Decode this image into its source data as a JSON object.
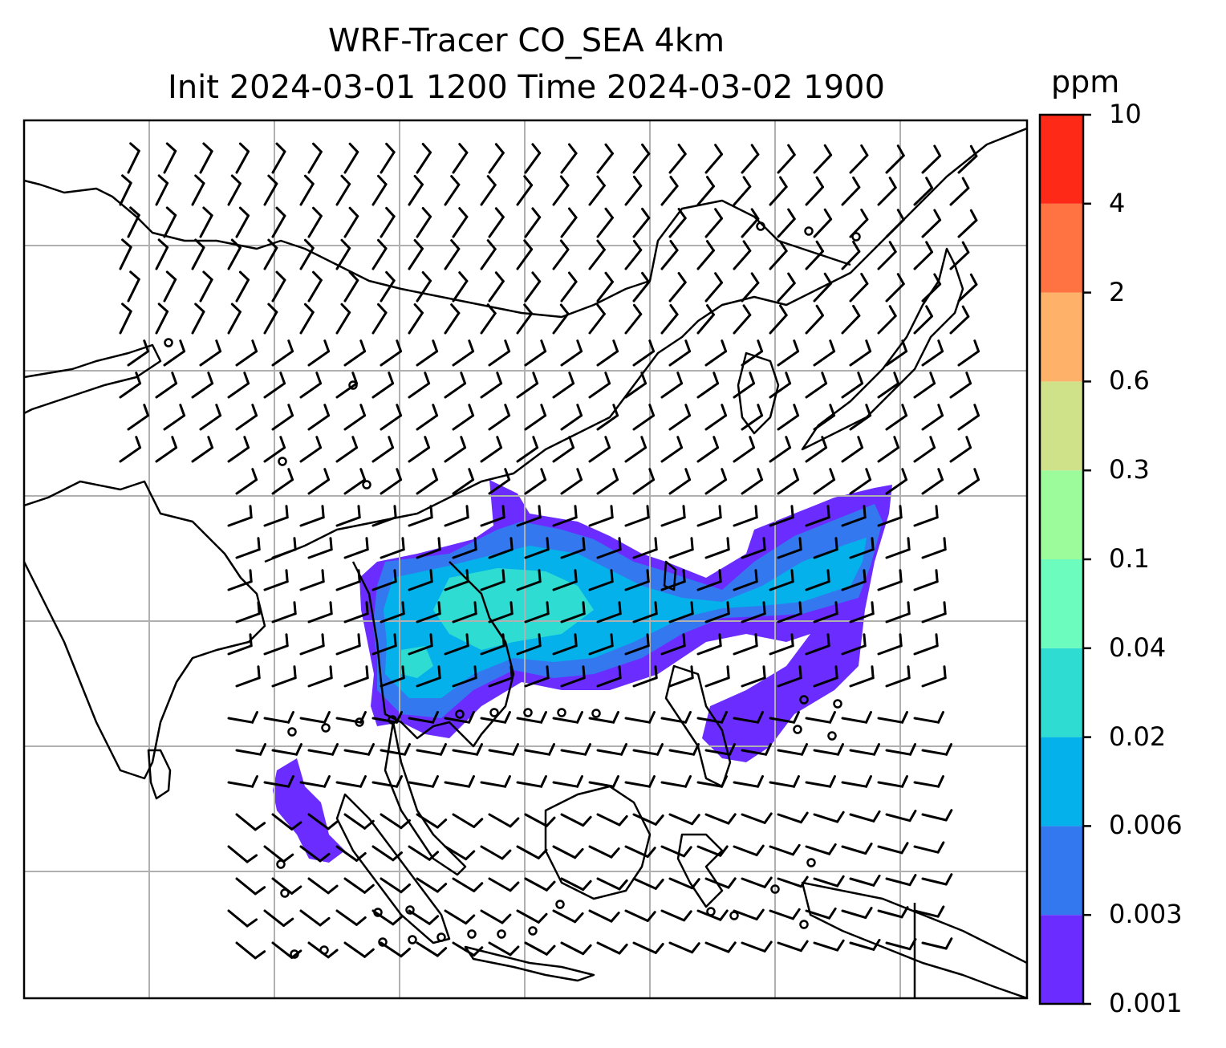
{
  "title": {
    "line1": "WRF-Tracer CO_SEA 4km",
    "line2": "Init 2024-03-01 1200 Time 2024-03-02 1900"
  },
  "colorbar": {
    "unit": "ppm",
    "levels": [
      "0.001",
      "0.003",
      "0.006",
      "0.02",
      "0.04",
      "0.1",
      "0.3",
      "0.6",
      "2",
      "4",
      "10"
    ],
    "colors": [
      "#6a2cff",
      "#3478f0",
      "#04b1ea",
      "#2edcd2",
      "#6cfcbe",
      "#9cfb9b",
      "#cfe28a",
      "#fdb169",
      "#ff7242",
      "#fe2a17"
    ]
  },
  "map": {
    "grid": "on",
    "coastlines": "on",
    "wind_barbs": "on",
    "plume_colors": {
      "outer": "#6a2cff",
      "mid": "#3478f0",
      "inner": "#04b1ea",
      "core": "#2edcd2"
    }
  }
}
